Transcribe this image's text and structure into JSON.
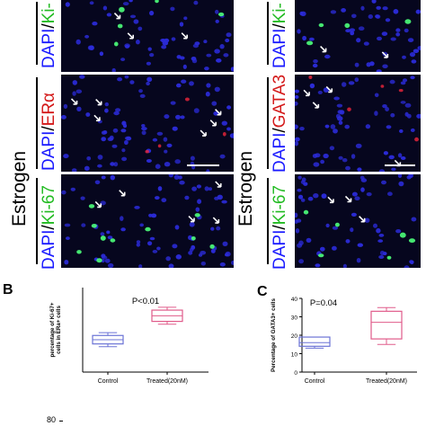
{
  "labels": {
    "dapi": "DAPI",
    "slash": "/",
    "ki67": "Ki-67",
    "ki_cut": "Ki-",
    "era": "ERα",
    "gata3": "GATA3",
    "estrogen": "Estrogen",
    "panel_b": "B",
    "panel_c": "C"
  },
  "colors": {
    "dapi": "#1a1aff",
    "ki67": "#22bb22",
    "red": "#d41a1a",
    "box_control": "#6b73d6",
    "box_treated": "#e05b8a"
  },
  "chart_data": [
    {
      "type": "box",
      "panel": "B",
      "annotation": "P<0.01",
      "ylabel": "percentage of Ki-67+ cells in ERa+ cells",
      "categories": [
        "Control",
        "Treated(20nM)"
      ],
      "boxes": [
        {
          "category": "Control",
          "min": 18,
          "q1": 20,
          "median": 23,
          "q3": 26,
          "max": 28
        },
        {
          "category": "Treated(20nM)",
          "min": 34,
          "q1": 36,
          "median": 40,
          "q3": 44,
          "max": 46
        }
      ],
      "ylim": [
        0,
        60
      ]
    },
    {
      "type": "box",
      "panel": "C",
      "annotation": "P=0.04",
      "ylabel": "Percentage of GATA3+ cells",
      "categories": [
        "Control",
        "Treated(20nM)"
      ],
      "yticks": [
        0,
        10,
        20,
        30,
        40
      ],
      "boxes": [
        {
          "category": "Control",
          "min": 13,
          "q1": 14,
          "median": 16,
          "q3": 19,
          "max": 19
        },
        {
          "category": "Treated(20nM)",
          "min": 15,
          "q1": 18,
          "median": 27,
          "q3": 33,
          "max": 35
        }
      ],
      "ylim": [
        0,
        40
      ]
    }
  ],
  "footer_tick": "80"
}
